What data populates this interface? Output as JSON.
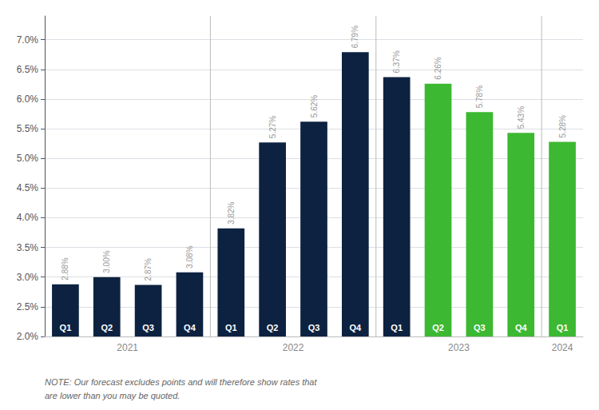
{
  "chart_data": {
    "type": "bar",
    "categories": [
      "Q1",
      "Q2",
      "Q3",
      "Q4",
      "Q1",
      "Q2",
      "Q3",
      "Q4",
      "Q1",
      "Q2",
      "Q3",
      "Q4",
      "Q1"
    ],
    "values": [
      2.88,
      3.0,
      2.87,
      3.08,
      3.82,
      5.27,
      5.62,
      6.79,
      6.37,
      6.26,
      5.78,
      5.43,
      5.28
    ],
    "value_labels": [
      "2.88%",
      "3.00%",
      "2.87%",
      "3.08%",
      "3.82%",
      "5.27%",
      "5.62%",
      "6.79%",
      "6.37%",
      "6.26%",
      "5.78%",
      "5.43%",
      "5.28%"
    ],
    "colors": [
      "#0d2240",
      "#0d2240",
      "#0d2240",
      "#0d2240",
      "#0d2240",
      "#0d2240",
      "#0d2240",
      "#0d2240",
      "#0d2240",
      "#3cb832",
      "#3cb832",
      "#3cb832",
      "#3cb832"
    ],
    "groups": [
      {
        "label": "2021",
        "size": 4
      },
      {
        "label": "2022",
        "size": 4
      },
      {
        "label": "2023",
        "size": 4
      },
      {
        "label": "2024",
        "size": 1
      }
    ],
    "ylim": [
      2.0,
      7.4
    ],
    "yticks": [
      {
        "value": 2.0,
        "label": "2.0%"
      },
      {
        "value": 2.5,
        "label": "2.5%"
      },
      {
        "value": 3.0,
        "label": "3.0%"
      },
      {
        "value": 3.5,
        "label": "3.5%"
      },
      {
        "value": 4.0,
        "label": "4.0%"
      },
      {
        "value": 4.5,
        "label": "4.5%"
      },
      {
        "value": 5.0,
        "label": "5.0%"
      },
      {
        "value": 5.5,
        "label": "5.5%"
      },
      {
        "value": 6.0,
        "label": "6.0%"
      },
      {
        "value": 6.5,
        "label": "6.5%"
      },
      {
        "value": 7.0,
        "label": "7.0%"
      }
    ],
    "grid": true,
    "data_labels": true,
    "annotations": [
      "NOTE: Our forecast excludes points and will therefore show rates that\nare lower than you may be quoted."
    ]
  }
}
